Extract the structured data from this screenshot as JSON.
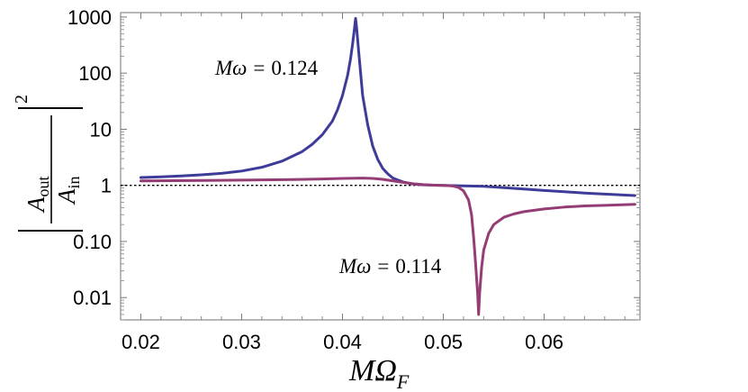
{
  "chart_data": {
    "type": "line",
    "title": "",
    "xlabel": "MΩ_F",
    "xlabel_parts": {
      "main": "MΩ",
      "sub": "F"
    },
    "ylabel": "|A_out / A_in|^2",
    "ylabel_parts": {
      "num": "A",
      "num_sub": "out",
      "den": "A",
      "den_sub": "in",
      "power": "2"
    },
    "x_scale": "linear",
    "y_scale": "log",
    "xlim": [
      0.018,
      0.0695
    ],
    "ylim": [
      0.004,
      1200
    ],
    "x_ticks": [
      {
        "value": 0.02,
        "label": "0.02"
      },
      {
        "value": 0.03,
        "label": "0.03"
      },
      {
        "value": 0.04,
        "label": "0.04"
      },
      {
        "value": 0.05,
        "label": "0.05"
      },
      {
        "value": 0.06,
        "label": "0.06"
      }
    ],
    "y_ticks": [
      {
        "value": 1000,
        "label": "1000"
      },
      {
        "value": 100,
        "label": "100"
      },
      {
        "value": 10,
        "label": "10"
      },
      {
        "value": 1,
        "label": "1"
      },
      {
        "value": 0.1,
        "label": "0.10"
      },
      {
        "value": 0.01,
        "label": "0.01"
      }
    ],
    "reference_line": {
      "y": 1,
      "style": "dotted",
      "color": "#000000"
    },
    "series": [
      {
        "name": "Mω = 0.124",
        "color": "#3f3c99",
        "points": [
          [
            0.02,
            1.38
          ],
          [
            0.022,
            1.42
          ],
          [
            0.024,
            1.47
          ],
          [
            0.026,
            1.54
          ],
          [
            0.028,
            1.64
          ],
          [
            0.03,
            1.8
          ],
          [
            0.032,
            2.1
          ],
          [
            0.034,
            2.7
          ],
          [
            0.036,
            4.0
          ],
          [
            0.037,
            5.4
          ],
          [
            0.038,
            8.0
          ],
          [
            0.039,
            14.0
          ],
          [
            0.0395,
            22.0
          ],
          [
            0.04,
            40.0
          ],
          [
            0.0405,
            90.0
          ],
          [
            0.0408,
            180.0
          ],
          [
            0.041,
            330.0
          ],
          [
            0.0412,
            650.0
          ],
          [
            0.0413,
            950.0
          ],
          [
            0.0414,
            650.0
          ],
          [
            0.0416,
            250.0
          ],
          [
            0.0418,
            100.0
          ],
          [
            0.042,
            40.0
          ],
          [
            0.0425,
            12.0
          ],
          [
            0.043,
            5.0
          ],
          [
            0.0435,
            2.9
          ],
          [
            0.044,
            2.0
          ],
          [
            0.0445,
            1.6
          ],
          [
            0.045,
            1.35
          ],
          [
            0.046,
            1.15
          ],
          [
            0.047,
            1.06
          ],
          [
            0.048,
            1.02
          ],
          [
            0.05,
            1.0
          ],
          [
            0.052,
            0.98
          ],
          [
            0.054,
            0.96
          ],
          [
            0.056,
            0.91
          ],
          [
            0.058,
            0.86
          ],
          [
            0.06,
            0.81
          ],
          [
            0.062,
            0.77
          ],
          [
            0.064,
            0.73
          ],
          [
            0.066,
            0.7
          ],
          [
            0.069,
            0.66
          ]
        ]
      },
      {
        "name": "Mω = 0.114",
        "color": "#943c74",
        "points": [
          [
            0.02,
            1.2
          ],
          [
            0.025,
            1.22
          ],
          [
            0.03,
            1.24
          ],
          [
            0.035,
            1.27
          ],
          [
            0.038,
            1.3
          ],
          [
            0.04,
            1.33
          ],
          [
            0.042,
            1.35
          ],
          [
            0.043,
            1.33
          ],
          [
            0.044,
            1.28
          ],
          [
            0.045,
            1.2
          ],
          [
            0.046,
            1.13
          ],
          [
            0.047,
            1.07
          ],
          [
            0.048,
            1.03
          ],
          [
            0.049,
            1.01
          ],
          [
            0.05,
            1.0
          ],
          [
            0.0505,
            0.99
          ],
          [
            0.051,
            0.97
          ],
          [
            0.0515,
            0.92
          ],
          [
            0.052,
            0.8
          ],
          [
            0.0525,
            0.55
          ],
          [
            0.0528,
            0.3
          ],
          [
            0.053,
            0.12
          ],
          [
            0.0532,
            0.04
          ],
          [
            0.0534,
            0.012
          ],
          [
            0.0535,
            0.005
          ],
          [
            0.0536,
            0.012
          ],
          [
            0.0538,
            0.035
          ],
          [
            0.054,
            0.07
          ],
          [
            0.0545,
            0.14
          ],
          [
            0.055,
            0.2
          ],
          [
            0.056,
            0.27
          ],
          [
            0.057,
            0.31
          ],
          [
            0.058,
            0.34
          ],
          [
            0.06,
            0.38
          ],
          [
            0.062,
            0.41
          ],
          [
            0.064,
            0.43
          ],
          [
            0.066,
            0.44
          ],
          [
            0.069,
            0.46
          ]
        ]
      }
    ],
    "annotations": [
      {
        "id": "ann-124",
        "prefix": "M",
        "symbol": "ω",
        "equals": "=",
        "value": "0.124",
        "series": 0
      },
      {
        "id": "ann-114",
        "prefix": "M",
        "symbol": "ω",
        "equals": "=",
        "value": "0.114",
        "series": 1
      }
    ]
  }
}
